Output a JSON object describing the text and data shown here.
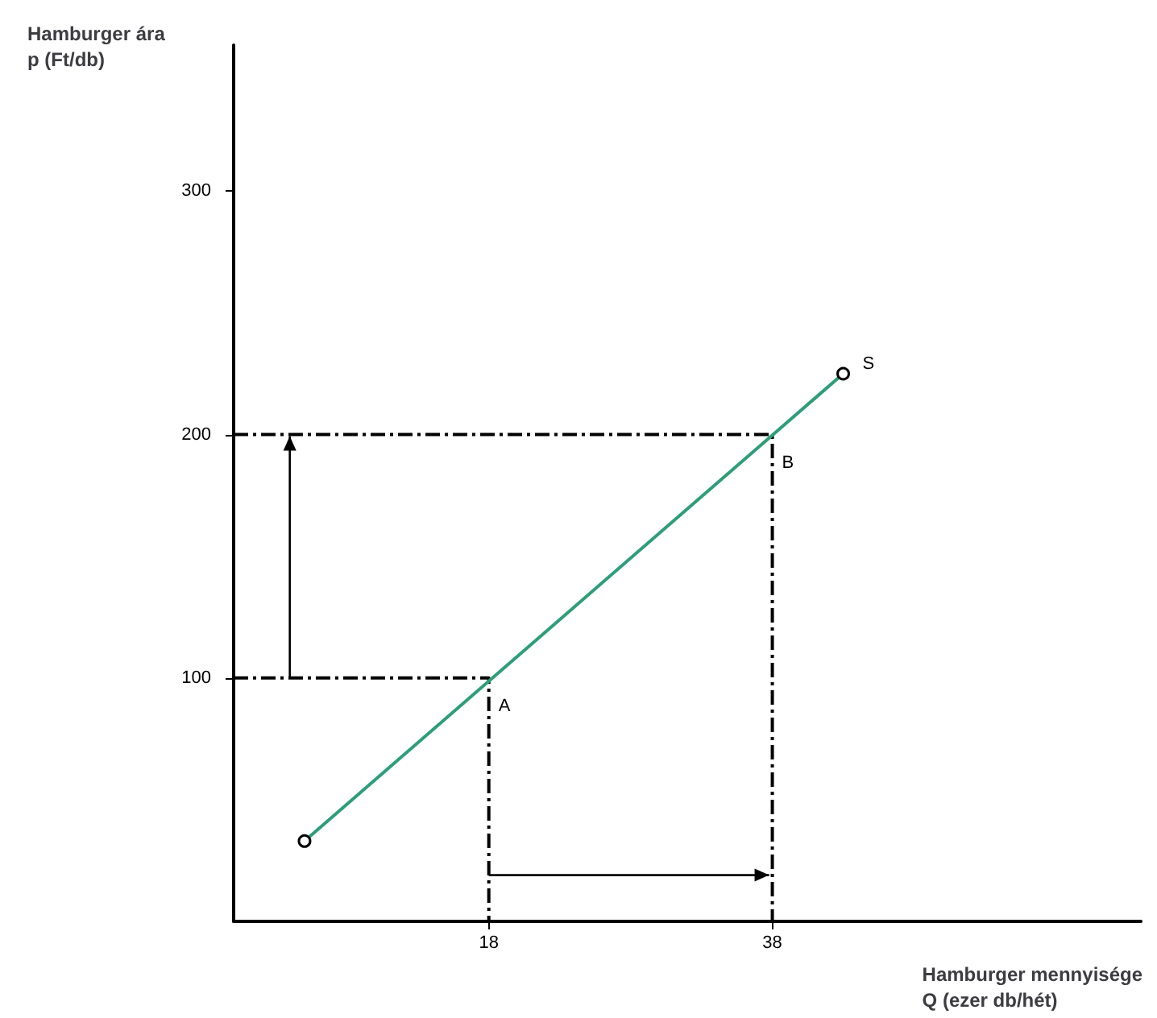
{
  "chart_data": {
    "type": "line",
    "ylabel": "Hamburger ára\np (Ft/db)",
    "xlabel": "Hamburger mennyisége\nQ (ezer db/hét)",
    "xlim": [
      0,
      64
    ],
    "ylim": [
      0,
      360
    ],
    "xticks": [
      18,
      38
    ],
    "yticks": [
      100,
      200,
      300
    ],
    "grid": false,
    "legend": false,
    "series": [
      {
        "name": "S",
        "color": "#2e9e78",
        "x": [
          5,
          43
        ],
        "values": [
          33,
          225
        ],
        "marker": "circle",
        "line_style": "solid"
      },
      {
        "color": "#000000",
        "x": [
          0,
          18,
          18
        ],
        "values": [
          100,
          100,
          0
        ],
        "marker": "none",
        "line_style": "dashed"
      },
      {
        "color": "#000000",
        "x": [
          0,
          38,
          38
        ],
        "values": [
          200,
          200,
          0
        ],
        "marker": "none",
        "line_style": "dashed"
      }
    ],
    "annotations": [
      {
        "text": "A",
        "x": 18,
        "y": 100
      },
      {
        "text": "B",
        "x": 38,
        "y": 200
      }
    ]
  }
}
